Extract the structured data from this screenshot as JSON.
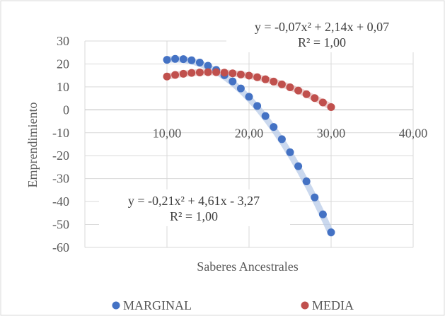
{
  "chart_data": {
    "type": "scatter",
    "title": "",
    "xlabel": "Saberes Ancestrales",
    "ylabel": "Emprendimiento",
    "xlim": [
      0,
      40
    ],
    "ylim": [
      -60,
      30
    ],
    "x_ticks": [
      {
        "value": 10,
        "label": "10,00"
      },
      {
        "value": 20,
        "label": "20,00"
      },
      {
        "value": 30,
        "label": "30,00"
      },
      {
        "value": 40,
        "label": "40,00"
      }
    ],
    "y_ticks": [
      {
        "value": 30,
        "label": "30"
      },
      {
        "value": 20,
        "label": "20"
      },
      {
        "value": 10,
        "label": "10"
      },
      {
        "value": 0,
        "label": "0"
      },
      {
        "value": -10,
        "label": "-10"
      },
      {
        "value": -20,
        "label": "-20"
      },
      {
        "value": -30,
        "label": "-30"
      },
      {
        "value": -40,
        "label": "-40"
      },
      {
        "value": -50,
        "label": "-50"
      },
      {
        "value": -60,
        "label": "-60"
      }
    ],
    "grid": true,
    "legend_position": "bottom",
    "series": [
      {
        "name": "MARGINAL",
        "color": "#4472C4",
        "trendline_color": "#B4C7E7",
        "trendline": {
          "type": "polynomial",
          "coefficients": [
            -0.21,
            4.61,
            -3.27
          ],
          "equation": "y = -0,21x² + 4,61x - 3,27",
          "r2_label": "R² = 1,00"
        },
        "x": [
          10,
          11,
          12,
          13,
          14,
          15,
          16,
          17,
          18,
          19,
          20,
          21,
          22,
          23,
          24,
          25,
          26,
          27,
          28,
          29,
          30
        ],
        "y": [
          21.8,
          22.2,
          22.1,
          21.6,
          20.6,
          19.2,
          17.4,
          15.1,
          12.4,
          9.3,
          5.7,
          1.7,
          -2.7,
          -7.5,
          -12.8,
          -18.5,
          -24.6,
          -31.2,
          -38.2,
          -45.6,
          -53.4
        ]
      },
      {
        "name": "MEDIA",
        "color": "#C0504D",
        "trendline_color": "#E6B9B8",
        "trendline": {
          "type": "polynomial",
          "coefficients": [
            -0.07,
            2.14,
            0.07
          ],
          "equation": "y = -0,07x² + 2,14x + 0,07",
          "r2_label": "R² = 1,00"
        },
        "x": [
          10,
          11,
          12,
          13,
          14,
          15,
          16,
          17,
          18,
          19,
          20,
          21,
          22,
          23,
          24,
          25,
          26,
          27,
          28,
          29,
          30
        ],
        "y": [
          14.5,
          15.2,
          15.7,
          16.1,
          16.3,
          16.4,
          16.4,
          16.2,
          15.9,
          15.4,
          14.9,
          14.2,
          13.3,
          12.3,
          11.1,
          9.8,
          8.4,
          6.8,
          5.1,
          3.2,
          1.2
        ]
      }
    ]
  }
}
